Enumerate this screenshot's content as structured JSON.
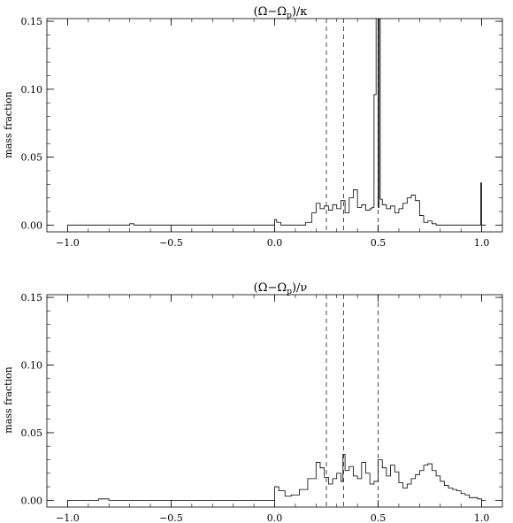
{
  "chart_data": [
    {
      "type": "line",
      "title": {
        "pre": "(Ω−Ω",
        "sub": "p",
        "post": ")/κ"
      },
      "ylabel": "mass fraction",
      "xlim": [
        -1.1,
        1.1
      ],
      "ylim": [
        -0.005,
        0.152
      ],
      "xticks": [
        -1.0,
        -0.5,
        0.0,
        0.5,
        1.0
      ],
      "xtick_labels": [
        "−1.0",
        "−0.5",
        "0.0",
        "0.5",
        "1.0"
      ],
      "yticks": [
        0.0,
        0.05,
        0.1,
        0.15
      ],
      "ytick_labels": [
        "0.00",
        "0.05",
        "0.10",
        "0.15"
      ],
      "vlines": [
        0.25,
        0.333,
        0.5
      ],
      "grid": false,
      "series": [
        {
          "x": [
            -1.0,
            -0.72,
            -0.7,
            -0.68,
            -0.02,
            0.0,
            0.01,
            0.03,
            0.05,
            0.1,
            0.15,
            0.18,
            0.2,
            0.22,
            0.24,
            0.26,
            0.28,
            0.3,
            0.32,
            0.34,
            0.36,
            0.38,
            0.4,
            0.42,
            0.44,
            0.46,
            0.47,
            0.48,
            0.49,
            0.495,
            0.5,
            0.505,
            0.51,
            0.52,
            0.54,
            0.56,
            0.58,
            0.6,
            0.62,
            0.64,
            0.66,
            0.68,
            0.7,
            0.72,
            0.74,
            0.76,
            0.78,
            0.8,
            0.99,
            0.995,
            1.0,
            1.02
          ],
          "y": [
            0.0,
            0.0,
            0.001,
            0.0,
            0.0,
            0.004,
            0.002,
            0.0,
            0.0,
            0.0,
            0.002,
            0.009,
            0.016,
            0.012,
            0.014,
            0.011,
            0.015,
            0.012,
            0.018,
            0.009,
            0.02,
            0.026,
            0.013,
            0.015,
            0.011,
            0.012,
            0.013,
            0.096,
            0.19,
            0.19,
            0.013,
            0.19,
            0.019,
            0.015,
            0.012,
            0.014,
            0.009,
            0.012,
            0.016,
            0.02,
            0.022,
            0.018,
            0.007,
            0.002,
            0.003,
            0.001,
            0.0,
            0.0,
            0.0,
            0.031,
            0.0,
            0.0
          ]
        }
      ]
    },
    {
      "type": "line",
      "title": {
        "pre": "(Ω−Ω",
        "sub": "p",
        "post": ")/ν"
      },
      "ylabel": "mass fraction",
      "xlim": [
        -1.1,
        1.1
      ],
      "ylim": [
        -0.005,
        0.152
      ],
      "xticks": [
        -1.0,
        -0.5,
        0.0,
        0.5,
        1.0
      ],
      "xtick_labels": [
        "−1.0",
        "−0.5",
        "0.0",
        "0.5",
        "1.0"
      ],
      "yticks": [
        0.0,
        0.05,
        0.1,
        0.15
      ],
      "ytick_labels": [
        "0.00",
        "0.05",
        "0.10",
        "0.15"
      ],
      "vlines": [
        0.25,
        0.333,
        0.5
      ],
      "grid": false,
      "series": [
        {
          "x": [
            -1.0,
            -0.9,
            -0.85,
            -0.8,
            -0.02,
            0.0,
            0.02,
            0.05,
            0.08,
            0.12,
            0.16,
            0.2,
            0.22,
            0.24,
            0.26,
            0.28,
            0.3,
            0.32,
            0.33,
            0.34,
            0.36,
            0.38,
            0.4,
            0.42,
            0.44,
            0.46,
            0.48,
            0.5,
            0.52,
            0.54,
            0.56,
            0.58,
            0.6,
            0.62,
            0.64,
            0.66,
            0.68,
            0.7,
            0.72,
            0.74,
            0.76,
            0.78,
            0.8,
            0.82,
            0.84,
            0.86,
            0.88,
            0.9,
            0.92,
            0.94,
            0.96,
            0.98,
            1.0,
            1.02
          ],
          "y": [
            0.0,
            0.0,
            0.001,
            0.0,
            0.0,
            0.01,
            0.007,
            0.003,
            0.004,
            0.008,
            0.016,
            0.028,
            0.024,
            0.017,
            0.012,
            0.016,
            0.02,
            0.014,
            0.034,
            0.022,
            0.025,
            0.018,
            0.016,
            0.028,
            0.02,
            0.012,
            0.014,
            0.03,
            0.024,
            0.018,
            0.026,
            0.021,
            0.013,
            0.009,
            0.012,
            0.016,
            0.019,
            0.022,
            0.026,
            0.027,
            0.022,
            0.018,
            0.014,
            0.011,
            0.009,
            0.008,
            0.007,
            0.005,
            0.004,
            0.002,
            0.002,
            0.001,
            0.0,
            0.0
          ]
        }
      ]
    }
  ]
}
